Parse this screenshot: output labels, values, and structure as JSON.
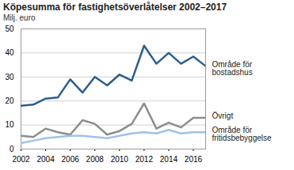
{
  "chart_data": {
    "type": "line",
    "title": "Köpesumma för fastighetsöverlåtelser 2002–2017",
    "subtitle": "Milj. euro",
    "x": [
      2002,
      2003,
      2004,
      2005,
      2006,
      2007,
      2008,
      2009,
      2010,
      2011,
      2012,
      2013,
      2014,
      2015,
      2016,
      2017
    ],
    "series": [
      {
        "name": "Område för bostadshus",
        "color": "#2c5d8f",
        "values": [
          18,
          18.5,
          21,
          21.5,
          29,
          23.5,
          30,
          26.5,
          31,
          28.5,
          43,
          35.5,
          40,
          35.5,
          38.5,
          34.5
        ]
      },
      {
        "name": "Övrigt",
        "color": "#8c8c8c",
        "values": [
          5.5,
          5,
          8.5,
          7,
          6,
          12,
          10.5,
          6,
          7.5,
          10.5,
          19,
          8.5,
          11,
          9,
          13,
          13
        ]
      },
      {
        "name": "Område för fritidsbebyggelse",
        "color": "#9dc3e6",
        "values": [
          2.5,
          3.5,
          4.5,
          5,
          5.5,
          5.5,
          5,
          4.5,
          5.5,
          6.5,
          7,
          6.5,
          8,
          6.5,
          7,
          7
        ]
      }
    ],
    "xlim": [
      2002,
      2017
    ],
    "xticks": [
      2002,
      2004,
      2006,
      2008,
      2010,
      2012,
      2014,
      2016
    ],
    "ylim": [
      0,
      50
    ],
    "yticks": [
      0,
      10,
      20,
      30,
      40,
      50
    ],
    "grid": true
  }
}
